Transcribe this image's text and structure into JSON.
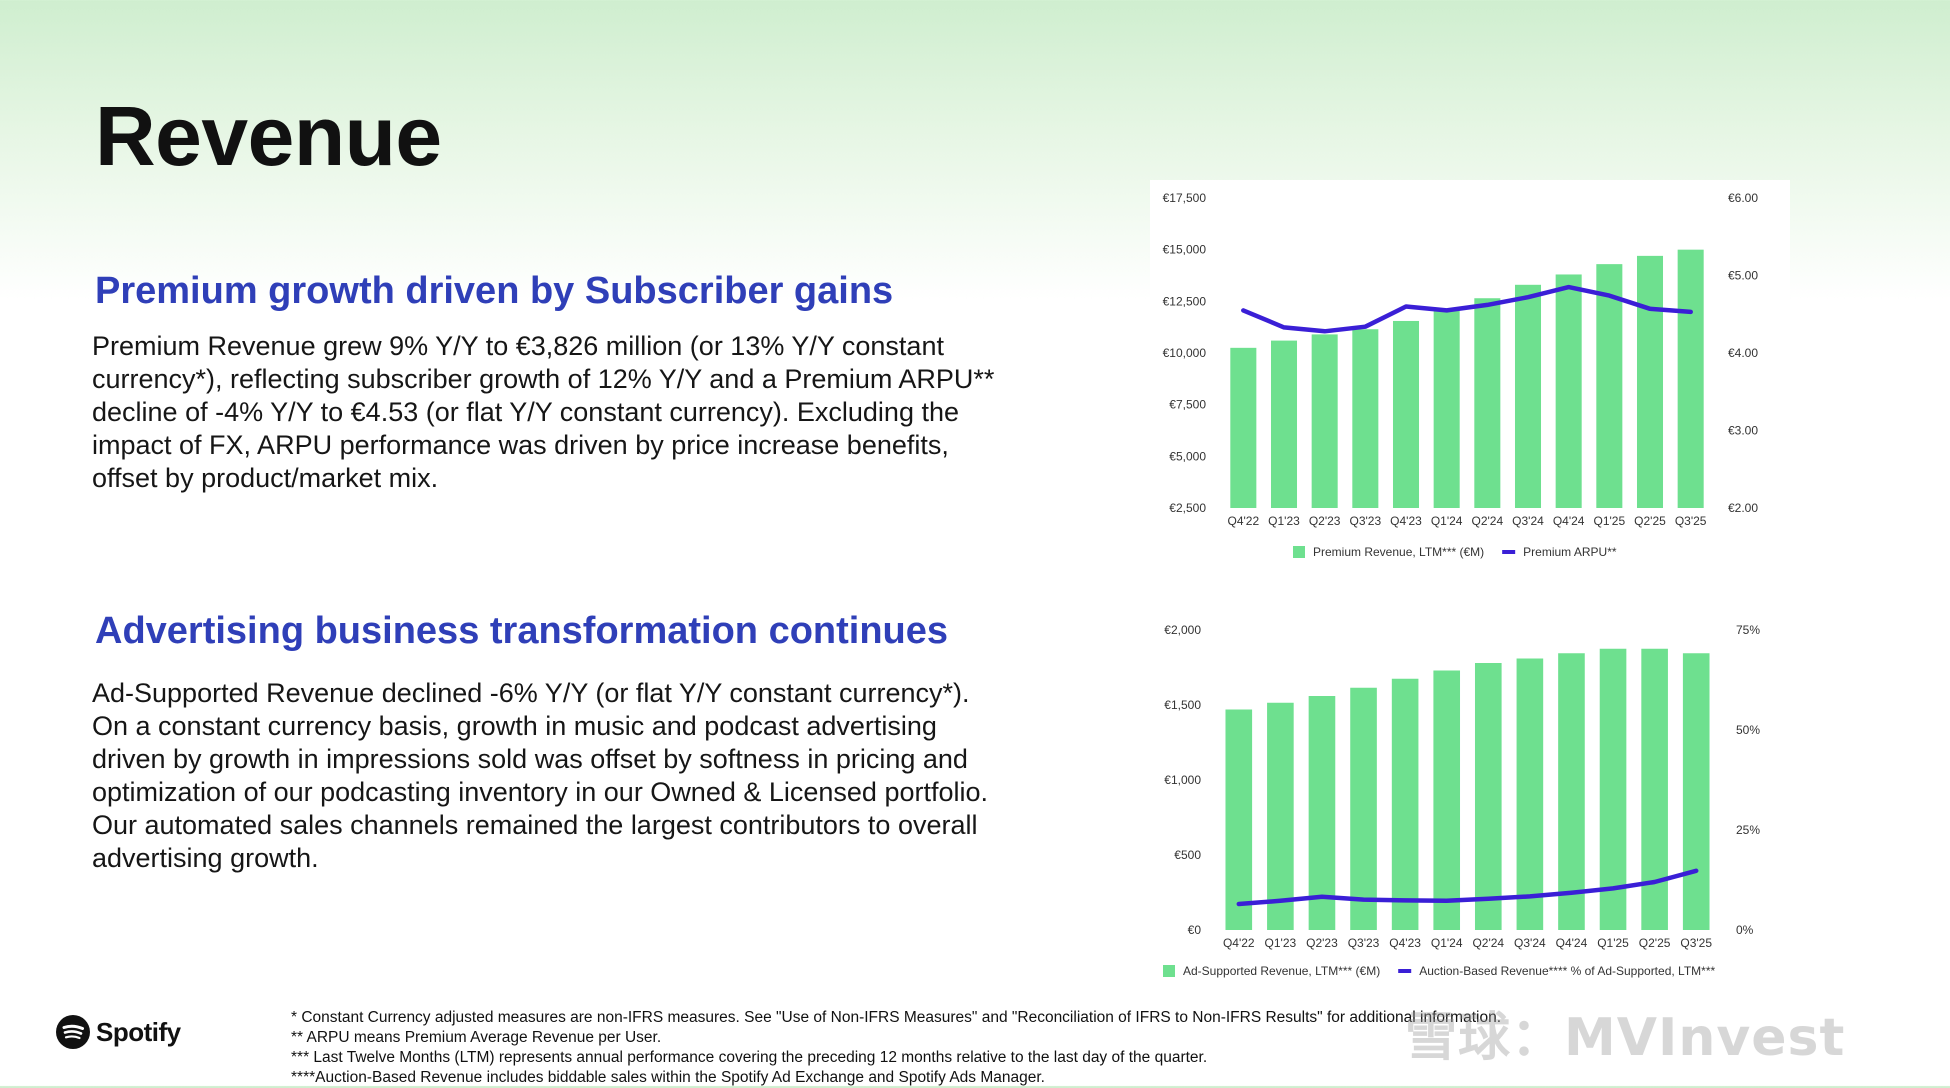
{
  "page": {
    "title": "Revenue",
    "brand": "Spotify"
  },
  "sections": [
    {
      "heading": "Premium growth driven by Subscriber gains",
      "body": "Premium Revenue grew 9% Y/Y to €3,826 million (or 13% Y/Y constant currency*), reflecting subscriber growth of 12% Y/Y and a Premium ARPU** decline of -4% Y/Y to €4.53 (or flat Y/Y constant currency). Excluding the impact of FX, ARPU performance was driven by price increase benefits, offset by product/market mix."
    },
    {
      "heading": "Advertising business transformation continues",
      "body": "Ad-Supported Revenue declined -6% Y/Y (or flat Y/Y constant currency*). On a constant currency basis, growth in music and podcast advertising driven by growth in impressions sold was offset by softness in pricing and optimization of our podcasting inventory in our Owned & Licensed portfolio. Our automated sales channels remained the largest contributors to overall advertising growth."
    }
  ],
  "footnotes": [
    "* Constant Currency adjusted measures are non-IFRS measures. See \"Use of Non-IFRS Measures\" and \"Reconciliation of IFRS to Non-IFRS Results\" for additional information.",
    "** ARPU means Premium Average Revenue per User.",
    "*** Last Twelve Months (LTM) represents annual performance covering the preceding 12 months relative to the last day of the quarter.",
    "****Auction-Based Revenue includes biddable sales within the Spotify Ad Exchange and Spotify Ads Manager."
  ],
  "watermark": "雪球：MVInvest",
  "colors": {
    "bar": "#6ee08f",
    "line": "#3a1fd6",
    "heading": "#2f3fb8"
  },
  "chart_data": [
    {
      "type": "bar",
      "categories": [
        "Q4'22",
        "Q1'23",
        "Q2'23",
        "Q3'23",
        "Q4'23",
        "Q1'24",
        "Q2'24",
        "Q3'24",
        "Q4'24",
        "Q1'25",
        "Q2'25",
        "Q3'25"
      ],
      "y_ticks": [
        "€2,500",
        "€5,000",
        "€7,500",
        "€10,000",
        "€12,500",
        "€15,000",
        "€17,500"
      ],
      "y2_ticks": [
        "€2.00",
        "€3.00",
        "€4.00",
        "€5.00",
        "€6.00"
      ],
      "ylim": [
        2500,
        17500
      ],
      "y2lim": [
        2,
        6
      ],
      "series": [
        {
          "name": "Premium Revenue, LTM*** (€M)",
          "type": "bar",
          "axis": "left",
          "values": [
            10250,
            10600,
            10900,
            11150,
            11550,
            12100,
            12650,
            13300,
            13800,
            14300,
            14700,
            15000
          ]
        },
        {
          "name": "Premium ARPU**",
          "type": "line",
          "axis": "right",
          "values": [
            4.55,
            4.33,
            4.28,
            4.34,
            4.6,
            4.55,
            4.62,
            4.72,
            4.85,
            4.74,
            4.57,
            4.53
          ]
        }
      ],
      "legend_position": "bottom",
      "grid": false
    },
    {
      "type": "bar",
      "categories": [
        "Q4'22",
        "Q1'23",
        "Q2'23",
        "Q3'23",
        "Q4'23",
        "Q1'24",
        "Q2'24",
        "Q3'24",
        "Q4'24",
        "Q1'25",
        "Q2'25",
        "Q3'25"
      ],
      "y_ticks": [
        "€0",
        "€500",
        "€1,000",
        "€1,500",
        "€2,000"
      ],
      "y2_ticks": [
        "0%",
        "25%",
        "50%",
        "75%"
      ],
      "ylim": [
        0,
        2000
      ],
      "y2lim": [
        0,
        75
      ],
      "series": [
        {
          "name": "Ad-Supported Revenue, LTM*** (€M)",
          "type": "bar",
          "axis": "left",
          "values": [
            1470,
            1515,
            1560,
            1615,
            1675,
            1730,
            1780,
            1810,
            1845,
            1875,
            1875,
            1845
          ]
        },
        {
          "name": "Auction-Based Revenue**** % of Ad-Supported, LTM***",
          "type": "line",
          "axis": "right",
          "values": [
            6.5,
            7.3,
            8.3,
            7.6,
            7.4,
            7.3,
            7.8,
            8.4,
            9.3,
            10.4,
            12.0,
            14.8
          ]
        }
      ],
      "legend_position": "bottom",
      "grid": false
    }
  ]
}
